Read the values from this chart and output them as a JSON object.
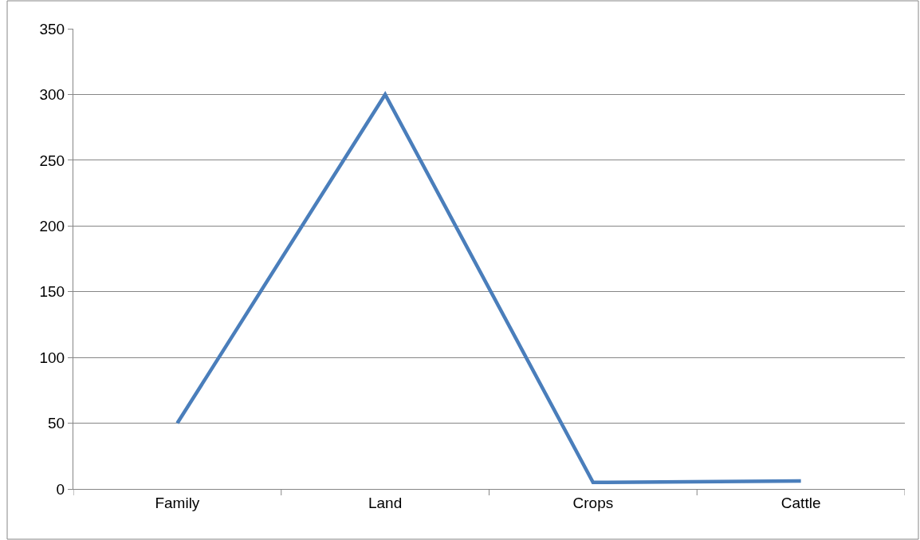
{
  "chart_data": {
    "type": "line",
    "categories": [
      "Family",
      "Land",
      "Crops",
      "Cattle"
    ],
    "series": [
      {
        "color": "#4a7ebb",
        "values": [
          50,
          300,
          5,
          6
        ]
      }
    ],
    "ylim": [
      0,
      350
    ],
    "yticks": [
      0,
      50,
      100,
      150,
      200,
      250,
      300,
      350
    ],
    "grid": "y",
    "legend": false,
    "marker": "none",
    "line_style": "solid"
  }
}
